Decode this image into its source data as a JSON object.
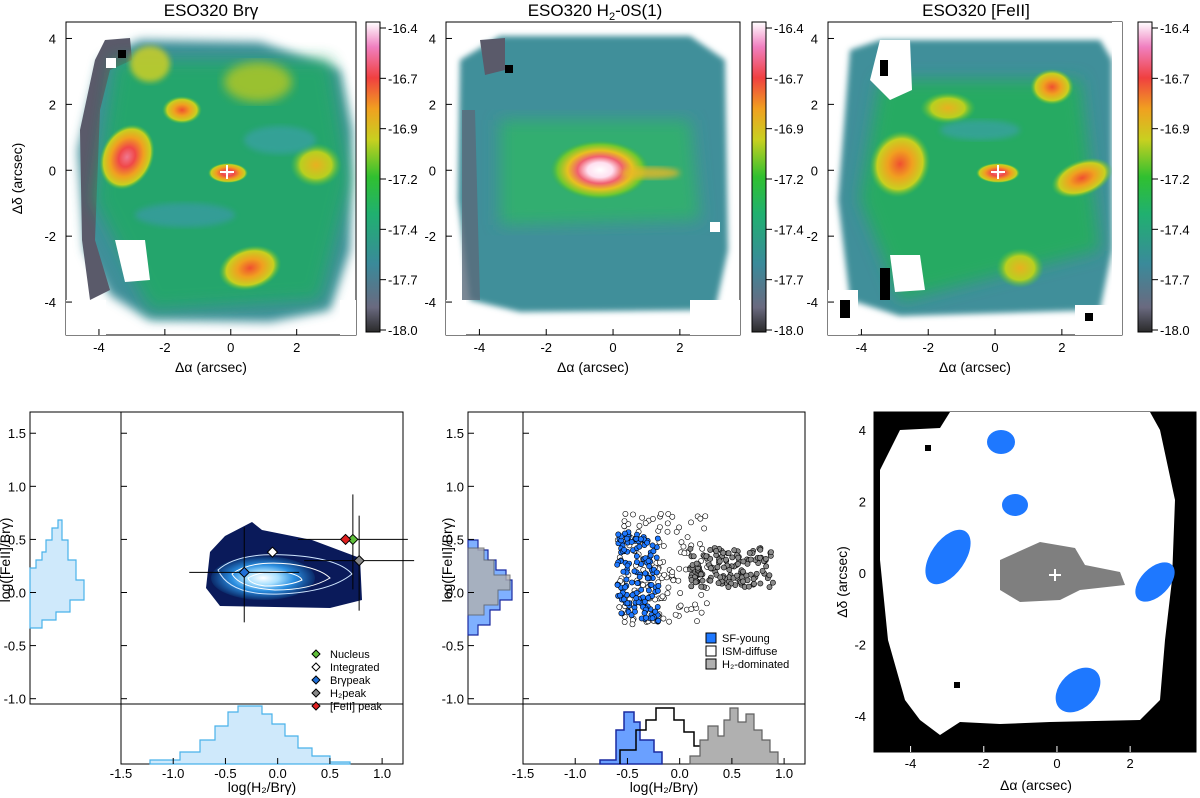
{
  "panels": [
    {
      "title": "ESO320 Brγ"
    },
    {
      "title_main": "ESO320 H",
      "title_sub": "2",
      "title_rest": "-0S(1)"
    },
    {
      "title": "ESO320 [FeII]"
    }
  ],
  "map_axes": {
    "xlabel": "Δα (arcsec)",
    "ylabel": "Δδ (arcsec)",
    "xticks": [
      "-4",
      "-2",
      "0",
      "2"
    ],
    "yticks": [
      "4",
      "2",
      "0",
      "-2",
      "-4"
    ]
  },
  "colorbar": {
    "ticks": [
      "-16.4",
      "-16.7",
      "-16.9",
      "-17.2",
      "-17.4",
      "-17.7",
      "-18.0"
    ]
  },
  "diag_axes": {
    "xlabel": "log(H₂/Brγ)",
    "ylabel": "log([FeII]/Brγ)",
    "xticks": [
      "-1.5",
      "-1.0",
      "-0.5",
      "0.0",
      "0.5",
      "1.0"
    ],
    "yticks": [
      "1.5",
      "1.0",
      "0.5",
      "0.0",
      "-0.5",
      "-1.0"
    ]
  },
  "legend_left": [
    {
      "label": "Nucleus",
      "color": "#5fbf3a"
    },
    {
      "label": "Integrated",
      "color": "#ffffff"
    },
    {
      "label": "Brγpeak",
      "color": "#1f6fd8"
    },
    {
      "label": "H₂peak",
      "color": "#888888"
    },
    {
      "label": "[FeII] peak",
      "color": "#e02020"
    }
  ],
  "legend_mid": [
    {
      "label": "SF-young",
      "color": "#1e78ff"
    },
    {
      "label": "ISM-diffuse",
      "color": "#ffffff"
    },
    {
      "label": "H₂-dominated",
      "color": "#b0b0b0"
    }
  ],
  "chart_data": [
    {
      "type": "heatmap",
      "title": "ESO320 Brγ",
      "xlabel": "Δα (arcsec)",
      "ylabel": "Δδ (arcsec)",
      "xlim": [
        -5,
        3.8
      ],
      "ylim": [
        -5,
        4.5
      ],
      "colorbar_range": [
        -18.0,
        -16.4
      ],
      "peaks": [
        {
          "x": -2.8,
          "y": 0.5,
          "value": -16.6
        },
        {
          "x": 0.3,
          "y": -0.2,
          "value": -16.8
        },
        {
          "x": 0.7,
          "y": -3.0,
          "value": -16.8
        },
        {
          "x": -1.3,
          "y": 1.8,
          "value": -16.9
        },
        {
          "x": -1.8,
          "y": 3.3,
          "value": -17.1
        },
        {
          "x": 1.5,
          "y": 2.9,
          "value": -17.1
        },
        {
          "x": 2.6,
          "y": 0.5,
          "value": -16.9
        }
      ]
    },
    {
      "type": "heatmap",
      "title": "ESO320 H2-0S(1)",
      "xlabel": "Δα (arcsec)",
      "ylabel": "Δδ (arcsec)",
      "xlim": [
        -5,
        3.8
      ],
      "ylim": [
        -5,
        4.5
      ],
      "colorbar_range": [
        -18.0,
        -16.4
      ],
      "peaks": [
        {
          "x": -0.2,
          "y": 0.0,
          "value": -16.4
        },
        {
          "x": 1.3,
          "y": -0.1,
          "value": -17.1
        }
      ]
    },
    {
      "type": "heatmap",
      "title": "ESO320 [FeII]",
      "xlabel": "Δα (arcsec)",
      "ylabel": "Δδ (arcsec)",
      "xlim": [
        -5,
        3.8
      ],
      "ylim": [
        -5,
        4.5
      ],
      "colorbar_range": [
        -18.0,
        -16.4
      ],
      "peaks": [
        {
          "x": -3.0,
          "y": 0.3,
          "value": -16.8
        },
        {
          "x": 0.1,
          "y": -0.2,
          "value": -16.8
        },
        {
          "x": 1.6,
          "y": 2.6,
          "value": -16.9
        },
        {
          "x": 2.5,
          "y": -0.2,
          "value": -16.9
        },
        {
          "x": -1.5,
          "y": 2.0,
          "value": -17.0
        },
        {
          "x": 0.7,
          "y": -3.1,
          "value": -17.0
        }
      ]
    },
    {
      "type": "scatter",
      "xlabel": "log(H₂/Brγ)",
      "ylabel": "log([FeII]/Brγ)",
      "xlim": [
        -1.5,
        1.2
      ],
      "ylim": [
        -1.05,
        1.7
      ],
      "points": [
        {
          "name": "Nucleus",
          "x": 0.72,
          "y": 0.5
        },
        {
          "name": "Integrated",
          "x": -0.05,
          "y": 0.38
        },
        {
          "name": "Brγpeak",
          "x": -0.32,
          "y": 0.19
        },
        {
          "name": "H₂peak",
          "x": 0.78,
          "y": 0.3
        },
        {
          "name": "[FeII] peak",
          "x": 0.65,
          "y": 0.5
        }
      ],
      "x_hist_peak": -0.15,
      "y_hist_peak": 0.12
    },
    {
      "type": "scatter",
      "xlabel": "log(H₂/Brγ)",
      "ylabel": "log([FeII]/Brγ)",
      "xlim": [
        -1.5,
        1.2
      ],
      "ylim": [
        -1.05,
        1.7
      ],
      "series": [
        {
          "name": "SF-young",
          "x_range": [
            -0.6,
            -0.2
          ],
          "y_range": [
            -0.2,
            0.6
          ]
        },
        {
          "name": "ISM-diffuse",
          "x_range": [
            -0.6,
            0.3
          ],
          "y_range": [
            -0.3,
            0.75
          ]
        },
        {
          "name": "H₂-dominated",
          "x_range": [
            0.1,
            0.9
          ],
          "y_range": [
            0.05,
            0.42
          ]
        }
      ],
      "x_hist_peaks": {
        "SF-young": -0.45,
        "ISM-diffuse": -0.15,
        "H₂-dominated": 0.5
      }
    },
    {
      "type": "heatmap",
      "xlabel": "Δα (arcsec)",
      "ylabel": "Δδ (arcsec)",
      "xlim": [
        -5,
        3.8
      ],
      "ylim": [
        -5,
        4.5
      ],
      "classes": [
        "SF-young",
        "ISM-diffuse",
        "H₂-dominated"
      ],
      "blobs": [
        {
          "class": "SF-young",
          "x": -1.5,
          "y": 3.8
        },
        {
          "class": "SF-young",
          "x": -1.0,
          "y": 2.0
        },
        {
          "class": "SF-young",
          "x": -3.1,
          "y": 0.5
        },
        {
          "class": "SF-young",
          "x": 3.1,
          "y": -0.3
        },
        {
          "class": "SF-young",
          "x": 0.9,
          "y": -3.3
        },
        {
          "class": "H₂-dominated",
          "x": -0.3,
          "y": 0.0
        }
      ]
    }
  ]
}
